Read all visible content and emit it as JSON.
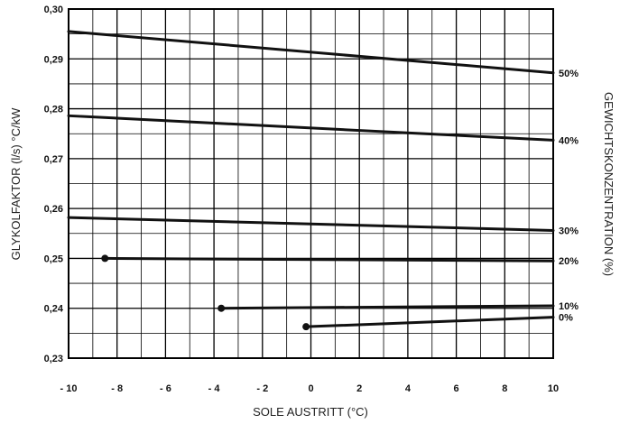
{
  "chart_data": {
    "type": "line",
    "xlabel": "SOLE AUSTRITT (°C)",
    "ylabel": "GLYKOLFAKTOR (l/s) °C/kW",
    "y2label": "GEWICHTSKONZENTRATION (%)",
    "xlim": [
      -10,
      10
    ],
    "ylim": [
      0.23,
      0.3
    ],
    "x_ticks": [
      -10,
      -8,
      -6,
      -4,
      -2,
      0,
      2,
      4,
      6,
      8,
      10
    ],
    "x_tick_labels": [
      "- 10",
      "- 8",
      "- 6",
      "- 4",
      "- 2",
      "0",
      "2",
      "4",
      "6",
      "8",
      "10"
    ],
    "y_ticks": [
      0.23,
      0.24,
      0.25,
      0.26,
      0.27,
      0.28,
      0.29,
      0.3
    ],
    "y_tick_labels": [
      "0,23",
      "0,24",
      "0,25",
      "0,26",
      "0,27",
      "0,28",
      "0,29",
      "0,30"
    ],
    "grid": true,
    "series": [
      {
        "name": "50%",
        "x": [
          -10,
          10
        ],
        "y": [
          0.2955,
          0.2872
        ],
        "start_marker": false
      },
      {
        "name": "40%",
        "x": [
          -10,
          10
        ],
        "y": [
          0.2786,
          0.2737
        ],
        "start_marker": false
      },
      {
        "name": "30%",
        "x": [
          -10,
          10
        ],
        "y": [
          0.2582,
          0.2556
        ],
        "start_marker": false
      },
      {
        "name": "20%",
        "x": [
          -8.5,
          10
        ],
        "y": [
          0.25,
          0.2495
        ],
        "start_marker": true
      },
      {
        "name": "10%",
        "x": [
          -3.7,
          10
        ],
        "y": [
          0.24,
          0.2405
        ],
        "start_marker": true
      },
      {
        "name": "0%",
        "x": [
          -0.2,
          10
        ],
        "y": [
          0.2363,
          0.2382
        ],
        "start_marker": true
      }
    ]
  }
}
